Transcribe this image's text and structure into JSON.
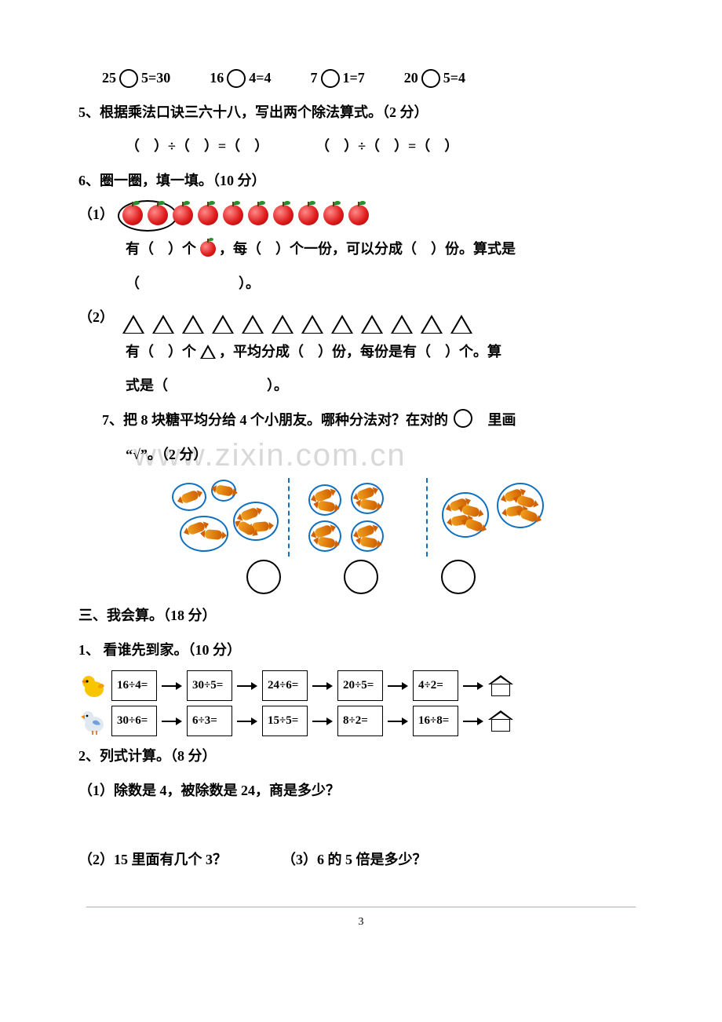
{
  "q4": {
    "equations": [
      {
        "lhs": "25",
        "rhs": "5=30"
      },
      {
        "lhs": "16",
        "rhs": "4=4"
      },
      {
        "lhs": "7",
        "rhs": "1=7"
      },
      {
        "lhs": "20",
        "rhs": "5=4"
      }
    ]
  },
  "q5": {
    "title": "5、根据乘法口诀三六十八，写出两个除法算式。（2 分）",
    "form1": "（　）÷（　）=（　）",
    "form2": "（　）÷（　）=（　）"
  },
  "q6": {
    "title": "6、圈一圈，填一填。（10 分）",
    "p1_label": "（1）",
    "p1_text_a": "有（　）个",
    "p1_text_b": "，每（　）个一份，可以分成（　）份。算式是",
    "p1_text_c": "（　　　　　　　）。",
    "p2_label": "（2）",
    "p2_text_a": "有（　）个",
    "p2_text_b": "，平均分成（　）份，每份是有（　）个。算",
    "p2_text_c": "式是（　　　　　　　）。",
    "apple_count": 10,
    "triangle_count": 12
  },
  "q7": {
    "title_a": "7、把 8 块糖平均分给 4 个小朋友。哪种分法对？在对的",
    "title_b": "里画",
    "title_c": "“√”。（2 分）"
  },
  "sec3": {
    "title": "三、我会算。（18 分）",
    "p1_title": "1、 看谁先到家。（10 分）",
    "chain1": [
      "16÷4=",
      "30÷5=",
      "24÷6=",
      "20÷5=",
      "4÷2="
    ],
    "chain2": [
      "30÷6=",
      "6÷3=",
      "15÷5=",
      "8÷2=",
      "16÷8="
    ],
    "p2_title": "2、列式计算。（8 分）",
    "c1": "（1）除数是 4，被除数是 24，商是多少？",
    "c2": "（2）15 里面有几个 3？",
    "c3": "（3）6 的 5 倍是多少？"
  },
  "watermark": "www.zixin.com.cn",
  "page_number": "3",
  "colors": {
    "dashed": "#1070c0",
    "footer_line": "#de9aa0",
    "apple": "#e02020",
    "candy": "#d06000"
  },
  "birds": {
    "chick": {
      "body": "#f7c600",
      "beak": "#f08000"
    },
    "duck": {
      "body": "#e0e8f0",
      "beak": "#f08000",
      "wing": "#70a0e0"
    }
  }
}
